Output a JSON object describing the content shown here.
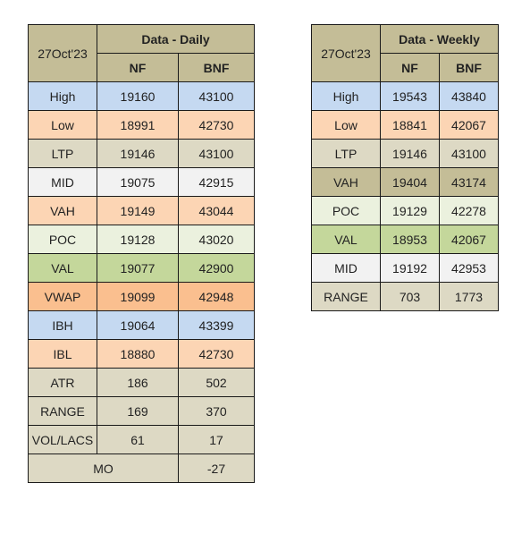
{
  "daily": {
    "date": "27Oct'23",
    "title": "Data - Daily",
    "col1": "NF",
    "col2": "BNF",
    "rows": [
      {
        "label": "High",
        "nf": "19160",
        "bnf": "43100",
        "color": "#c5d9f1"
      },
      {
        "label": "Low",
        "nf": "18991",
        "bnf": "42730",
        "color": "#fcd5b4"
      },
      {
        "label": "LTP",
        "nf": "19146",
        "bnf": "43100",
        "color": "#ddd9c4"
      },
      {
        "label": "MID",
        "nf": "19075",
        "bnf": "42915",
        "color": "#f2f2f2"
      },
      {
        "label": "VAH",
        "nf": "19149",
        "bnf": "43044",
        "color": "#fcd5b4"
      },
      {
        "label": "POC",
        "nf": "19128",
        "bnf": "43020",
        "color": "#ebf1de"
      },
      {
        "label": "VAL",
        "nf": "19077",
        "bnf": "42900",
        "color": "#c4d79b"
      },
      {
        "label": "VWAP",
        "nf": "19099",
        "bnf": "42948",
        "color": "#fabf8f"
      },
      {
        "label": "IBH",
        "nf": "19064",
        "bnf": "43399",
        "color": "#c5d9f1"
      },
      {
        "label": "IBL",
        "nf": "18880",
        "bnf": "42730",
        "color": "#fcd5b4"
      },
      {
        "label": "ATR",
        "nf": "186",
        "bnf": "502",
        "color": "#ddd9c4"
      },
      {
        "label": "RANGE",
        "nf": "169",
        "bnf": "370",
        "color": "#ddd9c4"
      },
      {
        "label": "VOL/LACS",
        "nf": "61",
        "bnf": "17",
        "color": "#ddd9c4"
      }
    ],
    "mo": {
      "label": "MO",
      "value": "-27",
      "color": "#ddd9c4"
    }
  },
  "weekly": {
    "date": "27Oct'23",
    "title": "Data - Weekly",
    "col1": "NF",
    "col2": "BNF",
    "rows": [
      {
        "label": "High",
        "nf": "19543",
        "bnf": "43840",
        "color": "#c5d9f1"
      },
      {
        "label": "Low",
        "nf": "18841",
        "bnf": "42067",
        "color": "#fcd5b4"
      },
      {
        "label": "LTP",
        "nf": "19146",
        "bnf": "43100",
        "color": "#ddd9c4"
      },
      {
        "label": "VAH",
        "nf": "19404",
        "bnf": "43174",
        "color": "#c4bd97"
      },
      {
        "label": "POC",
        "nf": "19129",
        "bnf": "42278",
        "color": "#ebf1de"
      },
      {
        "label": "VAL",
        "nf": "18953",
        "bnf": "42067",
        "color": "#c4d79b"
      },
      {
        "label": "MID",
        "nf": "19192",
        "bnf": "42953",
        "color": "#f2f2f2"
      },
      {
        "label": "RANGE",
        "nf": "703",
        "bnf": "1773",
        "color": "#ddd9c4"
      }
    ]
  }
}
